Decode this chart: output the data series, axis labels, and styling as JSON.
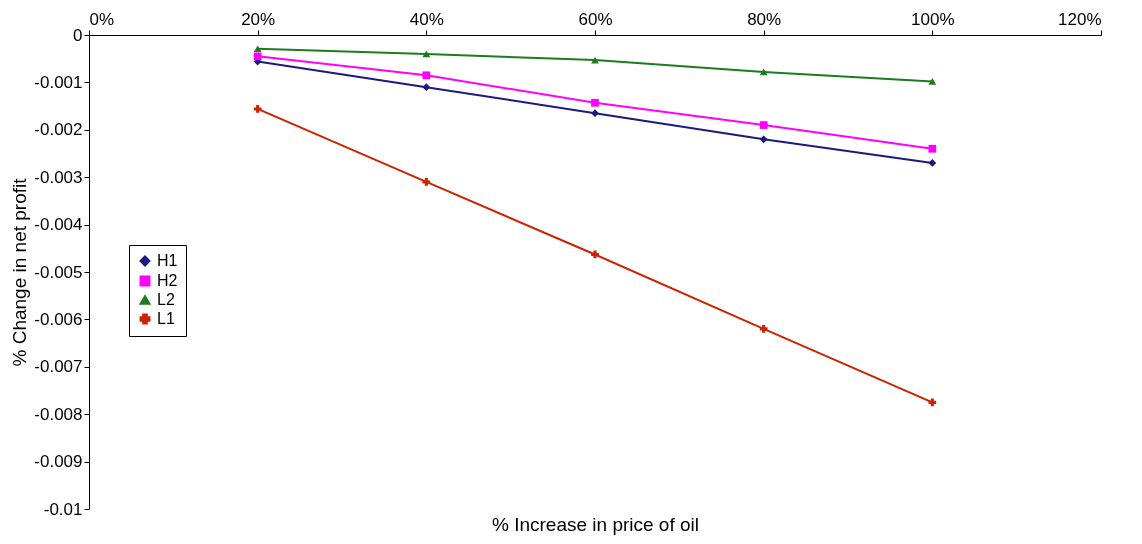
{
  "chart_data": {
    "type": "line",
    "xlabel": "% Increase in price of oil",
    "ylabel": "% Change in net profit",
    "x": [
      20,
      40,
      60,
      80,
      100
    ],
    "series": [
      {
        "name": "H1",
        "color": "#1a1a80",
        "marker": "diamond",
        "values": [
          -0.00056,
          -0.0011,
          -0.00165,
          -0.0022,
          -0.0027
        ]
      },
      {
        "name": "H2",
        "color": "#ff00ff",
        "marker": "square",
        "values": [
          -0.00045,
          -0.00085,
          -0.00143,
          -0.0019,
          -0.0024
        ]
      },
      {
        "name": "L2",
        "color": "#1e7b1e",
        "marker": "triangle",
        "values": [
          -0.00029,
          -0.0004,
          -0.00053,
          -0.00078,
          -0.00098
        ]
      },
      {
        "name": "L1",
        "color": "#cc2200",
        "marker": "cross",
        "values": [
          -0.00156,
          -0.0031,
          -0.00463,
          -0.0062,
          -0.00775
        ]
      }
    ],
    "xlim": [
      0,
      120
    ],
    "xticks": [
      {
        "value": 0,
        "label": "0%"
      },
      {
        "value": 20,
        "label": "20%"
      },
      {
        "value": 40,
        "label": "40%"
      },
      {
        "value": 60,
        "label": "60%"
      },
      {
        "value": 80,
        "label": "80%"
      },
      {
        "value": 100,
        "label": "100%"
      },
      {
        "value": 120,
        "label": "120%"
      }
    ],
    "ylim": [
      -0.01,
      0
    ],
    "yticks": [
      -0.01,
      -0.009,
      -0.008,
      -0.007,
      -0.006,
      -0.005,
      -0.004,
      -0.003,
      -0.002,
      -0.001,
      0
    ],
    "grid": false,
    "legend": "left",
    "line_style": "solid"
  }
}
